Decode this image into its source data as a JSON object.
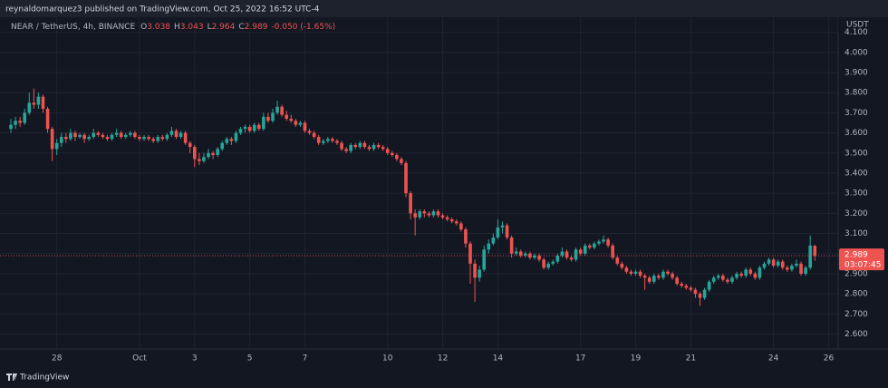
{
  "chart_data": {
    "type": "candlestick",
    "header": "reynaldomarquez3 published on TradingView.com, Oct 25, 2022 16:52 UTC-4",
    "symbol": "NEAR / TetherUS, 4h, BINANCE",
    "ohlc": [
      {
        "label": "O",
        "value": 3.038
      },
      {
        "label": "H",
        "value": 3.043
      },
      {
        "label": "L",
        "value": 2.964
      },
      {
        "label": "C",
        "value": 2.989
      }
    ],
    "change": "-0.050 (-1.65%)",
    "currency": "USDT",
    "last_price": {
      "value": 2.989,
      "label": "2.989"
    },
    "countdown": "03:07:45",
    "brand": "TradingView",
    "up_color": "#26a69a",
    "down_color": "#ef5350",
    "ylim": [
      2.53,
      4.13
    ],
    "yticks": [
      {
        "value": 2.6,
        "label": "2.600"
      },
      {
        "value": 2.7,
        "label": "2.700"
      },
      {
        "value": 2.8,
        "label": "2.800"
      },
      {
        "value": 2.9,
        "label": "2.900"
      },
      {
        "value": 3.0,
        "label": "3.000"
      },
      {
        "value": 3.1,
        "label": "3.100"
      },
      {
        "value": 3.2,
        "label": "3.200"
      },
      {
        "value": 3.3,
        "label": "3.300"
      },
      {
        "value": 3.4,
        "label": "3.400"
      },
      {
        "value": 3.5,
        "label": "3.500"
      },
      {
        "value": 3.6,
        "label": "3.600"
      },
      {
        "value": 3.7,
        "label": "3.700"
      },
      {
        "value": 3.8,
        "label": "3.800"
      },
      {
        "value": 3.9,
        "label": "3.900"
      },
      {
        "value": 4.0,
        "label": "4.000"
      },
      {
        "value": 4.1,
        "label": "4.100"
      }
    ],
    "grid": true,
    "categories": [
      null,
      null,
      null,
      null,
      null,
      null,
      null,
      null,
      null,
      null,
      "28",
      null,
      null,
      null,
      null,
      null,
      null,
      null,
      null,
      null,
      null,
      null,
      null,
      null,
      null,
      null,
      null,
      null,
      "Oct",
      null,
      null,
      null,
      null,
      null,
      null,
      null,
      null,
      null,
      null,
      null,
      "3",
      null,
      null,
      null,
      null,
      null,
      null,
      null,
      null,
      null,
      null,
      null,
      "5",
      null,
      null,
      null,
      null,
      null,
      null,
      null,
      null,
      null,
      null,
      null,
      "7",
      null,
      null,
      null,
      null,
      null,
      null,
      null,
      null,
      null,
      null,
      null,
      null,
      null,
      null,
      null,
      null,
      null,
      "10",
      null,
      null,
      null,
      null,
      null,
      null,
      null,
      null,
      null,
      null,
      null,
      "12",
      null,
      null,
      null,
      null,
      null,
      null,
      null,
      null,
      null,
      null,
      null,
      "14",
      null,
      null,
      null,
      null,
      null,
      null,
      null,
      null,
      null,
      null,
      null,
      null,
      null,
      null,
      null,
      null,
      null,
      "17",
      null,
      null,
      null,
      null,
      null,
      null,
      null,
      null,
      null,
      null,
      null,
      "19",
      null,
      null,
      null,
      null,
      null,
      null,
      null,
      null,
      null,
      null,
      null,
      "21",
      null,
      null,
      null,
      null,
      null,
      null,
      null,
      null,
      null,
      null,
      null,
      null,
      null,
      null,
      null,
      null,
      null,
      "24",
      null,
      null,
      null,
      null,
      null,
      null,
      null,
      null,
      null,
      null,
      null,
      "26"
    ],
    "candles": [
      [
        3.62,
        3.67,
        3.6,
        3.64
      ],
      [
        3.64,
        3.68,
        3.62,
        3.66
      ],
      [
        3.66,
        3.68,
        3.63,
        3.65
      ],
      [
        3.65,
        3.72,
        3.64,
        3.7
      ],
      [
        3.7,
        3.8,
        3.69,
        3.75
      ],
      [
        3.75,
        3.82,
        3.72,
        3.74
      ],
      [
        3.74,
        3.8,
        3.72,
        3.78
      ],
      [
        3.78,
        3.79,
        3.7,
        3.72
      ],
      [
        3.72,
        3.73,
        3.6,
        3.62
      ],
      [
        3.62,
        3.63,
        3.46,
        3.52
      ],
      [
        3.52,
        3.57,
        3.49,
        3.55
      ],
      [
        3.55,
        3.6,
        3.53,
        3.58
      ],
      [
        3.58,
        3.6,
        3.55,
        3.57
      ],
      [
        3.57,
        3.62,
        3.56,
        3.6
      ],
      [
        3.6,
        3.61,
        3.56,
        3.58
      ],
      [
        3.58,
        3.6,
        3.57,
        3.59
      ],
      [
        3.59,
        3.6,
        3.55,
        3.57
      ],
      [
        3.57,
        3.59,
        3.56,
        3.58
      ],
      [
        3.58,
        3.62,
        3.57,
        3.6
      ],
      [
        3.6,
        3.61,
        3.58,
        3.59
      ],
      [
        3.59,
        3.6,
        3.57,
        3.58
      ],
      [
        3.58,
        3.59,
        3.56,
        3.57
      ],
      [
        3.57,
        3.6,
        3.56,
        3.59
      ],
      [
        3.59,
        3.62,
        3.58,
        3.6
      ],
      [
        3.6,
        3.61,
        3.57,
        3.58
      ],
      [
        3.58,
        3.6,
        3.57,
        3.59
      ],
      [
        3.59,
        3.61,
        3.58,
        3.6
      ],
      [
        3.6,
        3.61,
        3.57,
        3.58
      ],
      [
        3.58,
        3.59,
        3.56,
        3.57
      ],
      [
        3.57,
        3.59,
        3.56,
        3.58
      ],
      [
        3.58,
        3.59,
        3.56,
        3.57
      ],
      [
        3.57,
        3.58,
        3.55,
        3.56
      ],
      [
        3.56,
        3.59,
        3.55,
        3.58
      ],
      [
        3.58,
        3.59,
        3.56,
        3.57
      ],
      [
        3.57,
        3.6,
        3.56,
        3.59
      ],
      [
        3.59,
        3.63,
        3.58,
        3.61
      ],
      [
        3.61,
        3.62,
        3.57,
        3.58
      ],
      [
        3.58,
        3.61,
        3.57,
        3.6
      ],
      [
        3.6,
        3.61,
        3.54,
        3.55
      ],
      [
        3.55,
        3.56,
        3.5,
        3.53
      ],
      [
        3.53,
        3.54,
        3.43,
        3.47
      ],
      [
        3.47,
        3.5,
        3.44,
        3.46
      ],
      [
        3.46,
        3.5,
        3.45,
        3.48
      ],
      [
        3.48,
        3.52,
        3.47,
        3.5
      ],
      [
        3.5,
        3.51,
        3.47,
        3.49
      ],
      [
        3.49,
        3.53,
        3.48,
        3.52
      ],
      [
        3.52,
        3.56,
        3.51,
        3.55
      ],
      [
        3.55,
        3.58,
        3.54,
        3.57
      ],
      [
        3.57,
        3.58,
        3.54,
        3.56
      ],
      [
        3.56,
        3.61,
        3.55,
        3.6
      ],
      [
        3.6,
        3.63,
        3.59,
        3.62
      ],
      [
        3.62,
        3.64,
        3.6,
        3.63
      ],
      [
        3.63,
        3.64,
        3.6,
        3.61
      ],
      [
        3.61,
        3.65,
        3.6,
        3.64
      ],
      [
        3.64,
        3.65,
        3.61,
        3.62
      ],
      [
        3.62,
        3.7,
        3.61,
        3.68
      ],
      [
        3.68,
        3.7,
        3.65,
        3.66
      ],
      [
        3.66,
        3.72,
        3.65,
        3.7
      ],
      [
        3.7,
        3.76,
        3.69,
        3.73
      ],
      [
        3.73,
        3.74,
        3.68,
        3.69
      ],
      [
        3.69,
        3.71,
        3.66,
        3.67
      ],
      [
        3.67,
        3.69,
        3.65,
        3.66
      ],
      [
        3.66,
        3.67,
        3.63,
        3.64
      ],
      [
        3.64,
        3.66,
        3.63,
        3.65
      ],
      [
        3.65,
        3.66,
        3.6,
        3.61
      ],
      [
        3.61,
        3.62,
        3.59,
        3.6
      ],
      [
        3.6,
        3.61,
        3.57,
        3.58
      ],
      [
        3.58,
        3.59,
        3.54,
        3.55
      ],
      [
        3.55,
        3.57,
        3.54,
        3.56
      ],
      [
        3.56,
        3.58,
        3.55,
        3.57
      ],
      [
        3.57,
        3.58,
        3.55,
        3.56
      ],
      [
        3.56,
        3.57,
        3.54,
        3.55
      ],
      [
        3.55,
        3.56,
        3.51,
        3.52
      ],
      [
        3.52,
        3.53,
        3.5,
        3.51
      ],
      [
        3.51,
        3.55,
        3.5,
        3.54
      ],
      [
        3.54,
        3.55,
        3.52,
        3.53
      ],
      [
        3.53,
        3.56,
        3.52,
        3.55
      ],
      [
        3.55,
        3.56,
        3.52,
        3.53
      ],
      [
        3.53,
        3.54,
        3.51,
        3.52
      ],
      [
        3.52,
        3.55,
        3.51,
        3.54
      ],
      [
        3.54,
        3.55,
        3.52,
        3.53
      ],
      [
        3.53,
        3.54,
        3.51,
        3.52
      ],
      [
        3.52,
        3.53,
        3.49,
        3.5
      ],
      [
        3.5,
        3.51,
        3.48,
        3.49
      ],
      [
        3.49,
        3.5,
        3.46,
        3.47
      ],
      [
        3.47,
        3.48,
        3.44,
        3.45
      ],
      [
        3.45,
        3.46,
        3.28,
        3.3
      ],
      [
        3.3,
        3.31,
        3.17,
        3.2
      ],
      [
        3.2,
        3.22,
        3.09,
        3.18
      ],
      [
        3.18,
        3.22,
        3.17,
        3.21
      ],
      [
        3.21,
        3.22,
        3.18,
        3.2
      ],
      [
        3.2,
        3.21,
        3.18,
        3.19
      ],
      [
        3.19,
        3.22,
        3.18,
        3.21
      ],
      [
        3.21,
        3.22,
        3.18,
        3.19
      ],
      [
        3.19,
        3.2,
        3.17,
        3.18
      ],
      [
        3.18,
        3.19,
        3.16,
        3.17
      ],
      [
        3.17,
        3.18,
        3.15,
        3.16
      ],
      [
        3.16,
        3.17,
        3.14,
        3.15
      ],
      [
        3.15,
        3.16,
        3.11,
        3.12
      ],
      [
        3.12,
        3.13,
        3.03,
        3.05
      ],
      [
        3.05,
        3.06,
        2.85,
        2.95
      ],
      [
        2.95,
        2.97,
        2.76,
        2.88
      ],
      [
        2.88,
        2.94,
        2.86,
        2.92
      ],
      [
        2.92,
        3.04,
        2.91,
        3.02
      ],
      [
        3.02,
        3.07,
        3.0,
        3.05
      ],
      [
        3.05,
        3.1,
        3.04,
        3.08
      ],
      [
        3.08,
        3.17,
        3.07,
        3.13
      ],
      [
        3.13,
        3.16,
        3.1,
        3.14
      ],
      [
        3.14,
        3.15,
        3.07,
        3.08
      ],
      [
        3.08,
        3.09,
        2.98,
        3.0
      ],
      [
        3.0,
        3.03,
        2.99,
        3.01
      ],
      [
        3.01,
        3.02,
        2.98,
        2.99
      ],
      [
        2.99,
        3.01,
        2.98,
        3.0
      ],
      [
        3.0,
        3.01,
        2.97,
        2.98
      ],
      [
        2.98,
        3.0,
        2.97,
        2.99
      ],
      [
        2.99,
        3.0,
        2.96,
        2.97
      ],
      [
        2.97,
        2.98,
        2.92,
        2.93
      ],
      [
        2.93,
        2.96,
        2.92,
        2.95
      ],
      [
        2.95,
        2.97,
        2.94,
        2.96
      ],
      [
        2.96,
        3.0,
        2.95,
        2.99
      ],
      [
        2.99,
        3.03,
        2.98,
        3.01
      ],
      [
        3.01,
        3.02,
        2.97,
        2.98
      ],
      [
        2.98,
        2.99,
        2.96,
        2.97
      ],
      [
        2.97,
        3.03,
        2.96,
        3.02
      ],
      [
        3.02,
        3.03,
        2.99,
        3.0
      ],
      [
        3.0,
        3.05,
        2.99,
        3.04
      ],
      [
        3.04,
        3.05,
        3.02,
        3.03
      ],
      [
        3.03,
        3.06,
        3.02,
        3.05
      ],
      [
        3.05,
        3.07,
        3.04,
        3.06
      ],
      [
        3.06,
        3.09,
        3.05,
        3.07
      ],
      [
        3.07,
        3.08,
        3.03,
        3.04
      ],
      [
        3.04,
        3.05,
        2.97,
        2.98
      ],
      [
        2.98,
        2.99,
        2.94,
        2.95
      ],
      [
        2.95,
        2.96,
        2.92,
        2.93
      ],
      [
        2.93,
        2.94,
        2.9,
        2.91
      ],
      [
        2.91,
        2.92,
        2.89,
        2.9
      ],
      [
        2.9,
        2.92,
        2.89,
        2.91
      ],
      [
        2.91,
        2.92,
        2.88,
        2.89
      ],
      [
        2.89,
        2.9,
        2.82,
        2.88
      ],
      [
        2.88,
        2.89,
        2.85,
        2.86
      ],
      [
        2.86,
        2.9,
        2.85,
        2.89
      ],
      [
        2.89,
        2.9,
        2.87,
        2.88
      ],
      [
        2.88,
        2.92,
        2.87,
        2.91
      ],
      [
        2.91,
        2.92,
        2.89,
        2.9
      ],
      [
        2.9,
        2.91,
        2.87,
        2.88
      ],
      [
        2.88,
        2.89,
        2.84,
        2.85
      ],
      [
        2.85,
        2.86,
        2.83,
        2.84
      ],
      [
        2.84,
        2.85,
        2.82,
        2.83
      ],
      [
        2.83,
        2.84,
        2.81,
        2.82
      ],
      [
        2.82,
        2.83,
        2.78,
        2.8
      ],
      [
        2.8,
        2.81,
        2.74,
        2.78
      ],
      [
        2.78,
        2.83,
        2.77,
        2.82
      ],
      [
        2.82,
        2.87,
        2.81,
        2.86
      ],
      [
        2.86,
        2.89,
        2.85,
        2.88
      ],
      [
        2.88,
        2.9,
        2.87,
        2.89
      ],
      [
        2.89,
        2.9,
        2.86,
        2.87
      ],
      [
        2.87,
        2.88,
        2.85,
        2.86
      ],
      [
        2.86,
        2.89,
        2.85,
        2.88
      ],
      [
        2.88,
        2.91,
        2.87,
        2.9
      ],
      [
        2.9,
        2.91,
        2.88,
        2.89
      ],
      [
        2.89,
        2.93,
        2.88,
        2.92
      ],
      [
        2.92,
        2.93,
        2.89,
        2.9
      ],
      [
        2.9,
        2.91,
        2.87,
        2.88
      ],
      [
        2.88,
        2.94,
        2.87,
        2.93
      ],
      [
        2.93,
        2.96,
        2.92,
        2.95
      ],
      [
        2.95,
        2.98,
        2.94,
        2.97
      ],
      [
        2.97,
        2.98,
        2.93,
        2.94
      ],
      [
        2.94,
        2.97,
        2.93,
        2.96
      ],
      [
        2.96,
        2.97,
        2.92,
        2.93
      ],
      [
        2.93,
        2.94,
        2.91,
        2.92
      ],
      [
        2.92,
        2.95,
        2.91,
        2.94
      ],
      [
        2.94,
        2.97,
        2.93,
        2.95
      ],
      [
        2.95,
        2.96,
        2.89,
        2.9
      ],
      [
        2.9,
        2.94,
        2.89,
        2.93
      ],
      [
        2.93,
        3.09,
        2.92,
        3.04
      ],
      [
        3.038,
        3.043,
        2.964,
        2.989
      ],
      null,
      null,
      null
    ]
  }
}
